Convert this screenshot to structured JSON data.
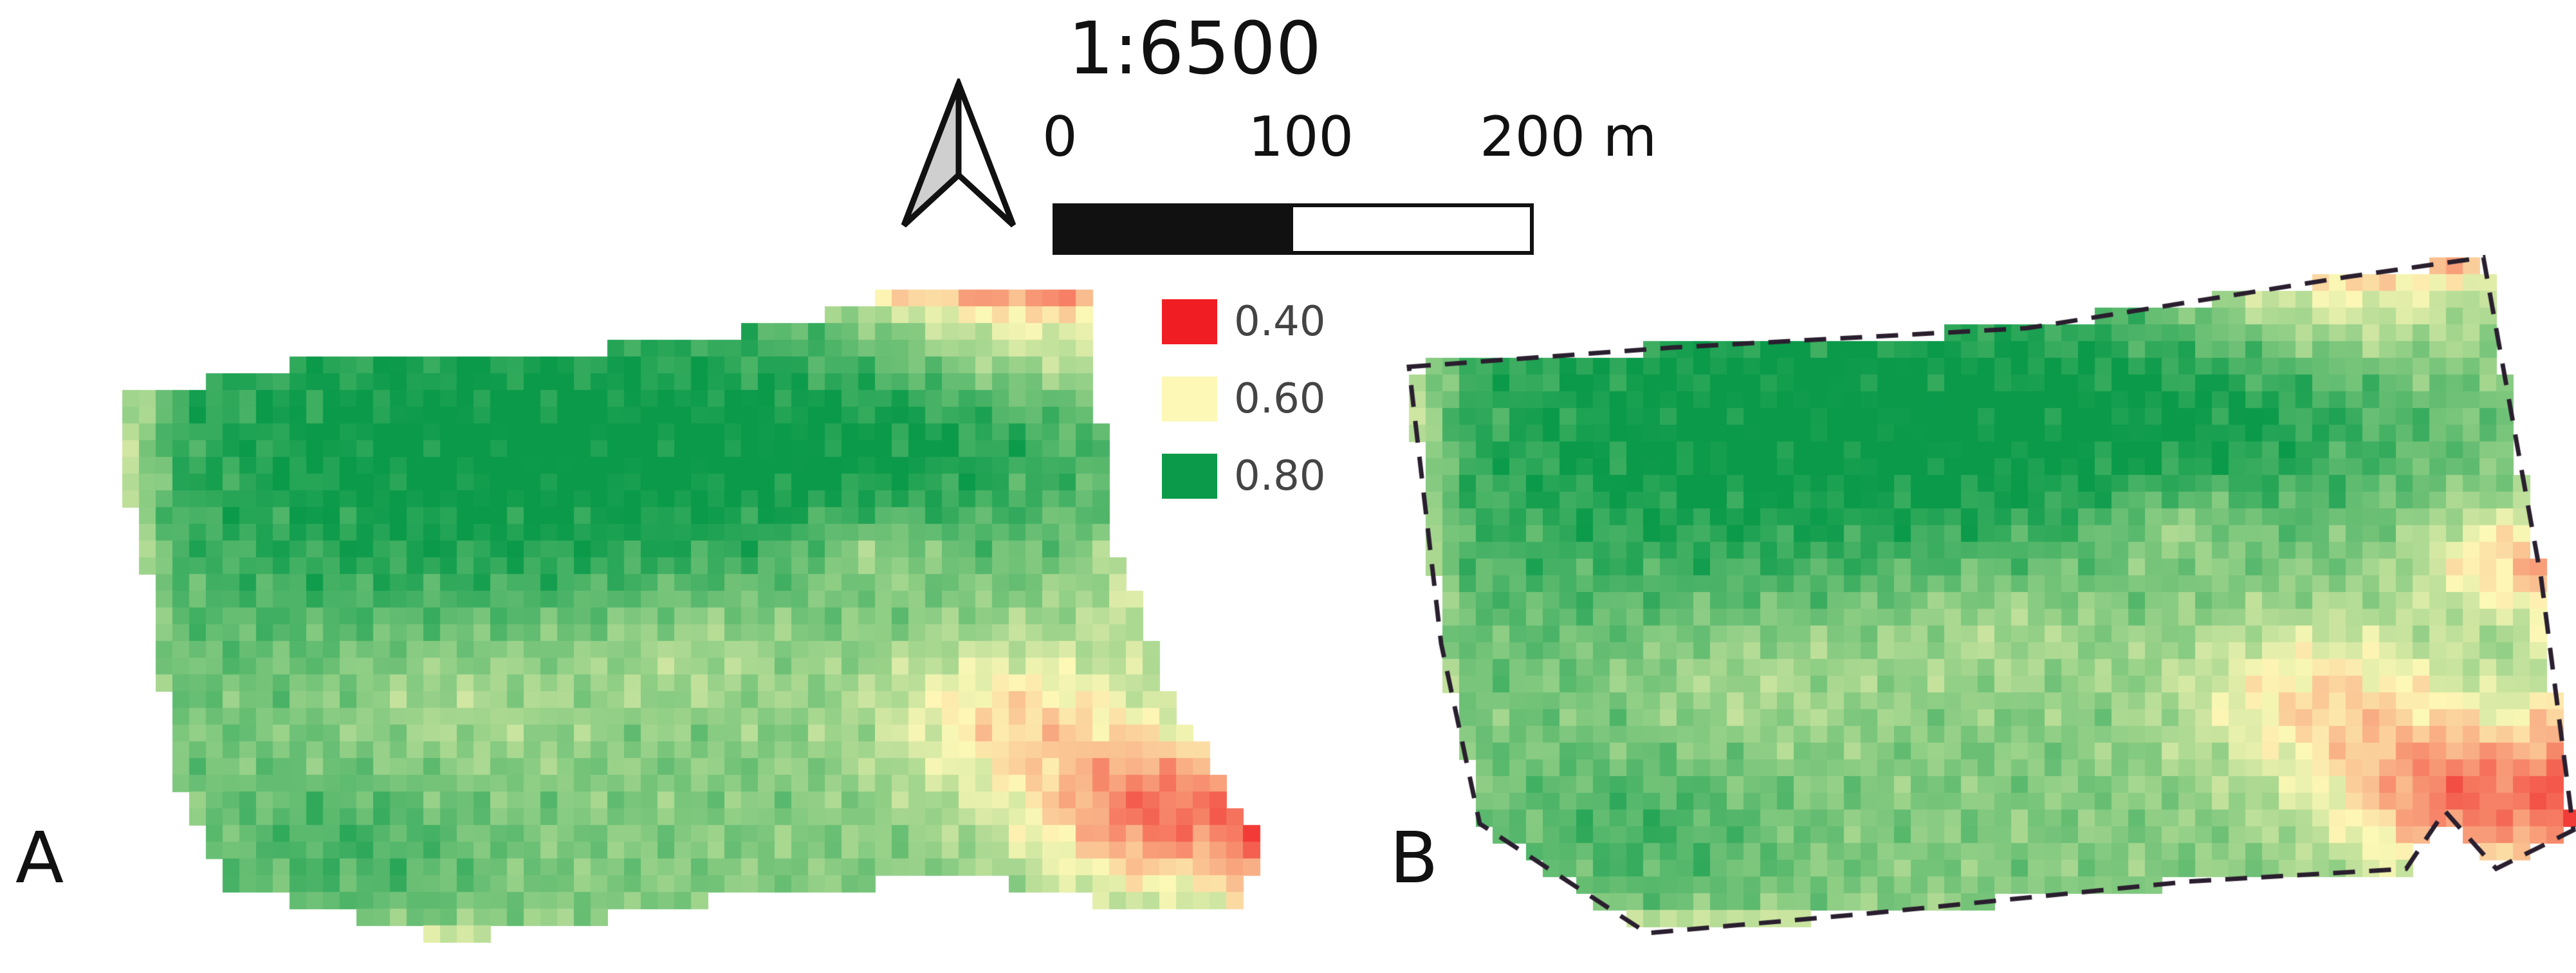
{
  "scale": {
    "ratio_label": "1:6500",
    "ticks": [
      "0",
      "100",
      "200 m"
    ]
  },
  "north_arrow": {
    "icon": "north-arrow-icon"
  },
  "legend": {
    "items": [
      {
        "label": "0.40",
        "color": "#f01e23"
      },
      {
        "label": "0.60",
        "color": "#fdf8b6"
      },
      {
        "label": "0.80",
        "color": "#0a9a4a"
      }
    ]
  },
  "panels": [
    {
      "label": "A"
    },
    {
      "label": "B"
    }
  ]
}
